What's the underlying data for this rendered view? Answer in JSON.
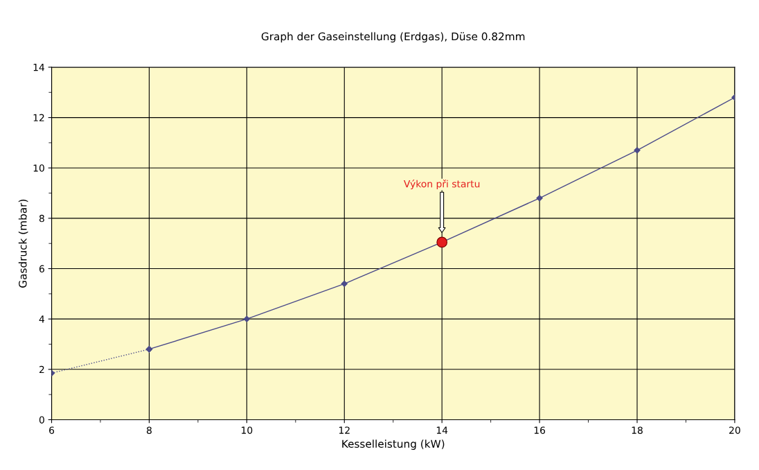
{
  "chart_data": {
    "type": "line",
    "title": "Graph der Gaseinstellung (Erdgas), Düse 0.82mm",
    "xlabel": "Kesselleistung (kW)",
    "ylabel": "Gasdruck (mbar)",
    "series": [
      {
        "x": [
          6,
          8
        ],
        "values": [
          1.85,
          2.8
        ],
        "color": "#4b4b8a",
        "line_style": "dotted",
        "marker": "diamond"
      },
      {
        "x": [
          8,
          10,
          12,
          14,
          16,
          18,
          20
        ],
        "values": [
          2.8,
          4.0,
          5.4,
          7.05,
          8.8,
          10.7,
          12.8
        ],
        "color": "#4b4b8a",
        "line_style": "solid",
        "marker": "diamond"
      },
      {
        "type": "scatter",
        "x": [
          14
        ],
        "values": [
          7.05
        ],
        "color": "#e41e1e",
        "marker": "circle"
      }
    ],
    "annotations": [
      "Výkon při startu"
    ],
    "xlim": [
      6,
      20
    ],
    "xticks": [
      6,
      8,
      10,
      12,
      14,
      16,
      18,
      20
    ],
    "ylim": [
      0,
      14
    ],
    "yticks": [
      0,
      2,
      4,
      6,
      8,
      10,
      12,
      14
    ],
    "grid": true
  }
}
